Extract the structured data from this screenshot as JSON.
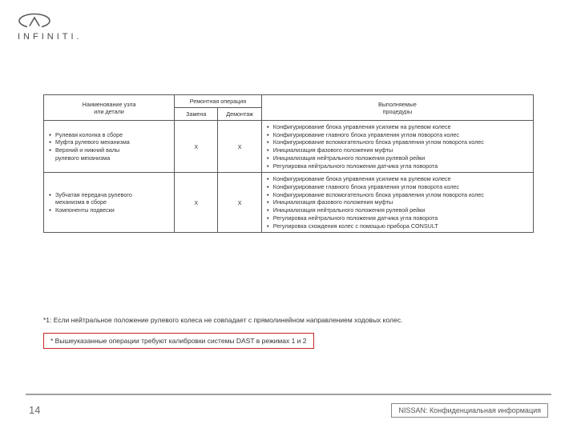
{
  "logo": {
    "text": "INFINITI."
  },
  "table": {
    "headers": {
      "name": "Наименование узла\nили детали",
      "repair": "Ремонтная операция",
      "replace": "Замена",
      "disasm": "Демонтаж",
      "proc": "Выполняемые\nпроцедуры"
    },
    "rows": [
      {
        "name_items": [
          "Рулевая колонка в сборе",
          "Муфта рулевого механизма",
          "Верхний и нижний валы",
          "рулевого механизма"
        ],
        "name_indent_last": true,
        "replace": "X",
        "disasm": "X",
        "proc_items": [
          "Конфигурирование блока управления усилием на рулевом колесе",
          "Конфигурирование главного блока управления углом поворота колес",
          "Конфигурирование вспомогательного блока управления углом поворота колес",
          "Инициализация фазового положения муфты",
          "Инициализация нейтрального положения рулевой рейки",
          "Регулировка нейтрального положения датчика угла поворота"
        ]
      },
      {
        "name_items": [
          "Зубчатая передача рулевого",
          "механизма в сборе",
          "Компоненты подвески"
        ],
        "name_indent_second": true,
        "replace": "X",
        "disasm": "X",
        "proc_items": [
          "Конфигурирование блока управления усилием на рулевом колесе",
          "Конфигурирование главного блока управления углом поворота колес",
          "Конфигурирование вспомогательного блока управления углом поворота колес",
          "Инициализация фазового положения муфты",
          "Инициализация нейтрального положения рулевой рейки",
          "Регулировка нейтрального положения датчика угла поворота",
          "Регулировка схождения колес с помощью прибора CONSULT"
        ]
      }
    ]
  },
  "footnote1": "*1: Если нейтральное положение рулевого колеса не совпадает с прямолинейном направлением ходовых колес.",
  "callout": "* Вышеуказанные операции требуют калибровки системы DAST в режимах 1 и 2",
  "page_number": "14",
  "confidential": "NISSAN: Конфиденциальная информация"
}
